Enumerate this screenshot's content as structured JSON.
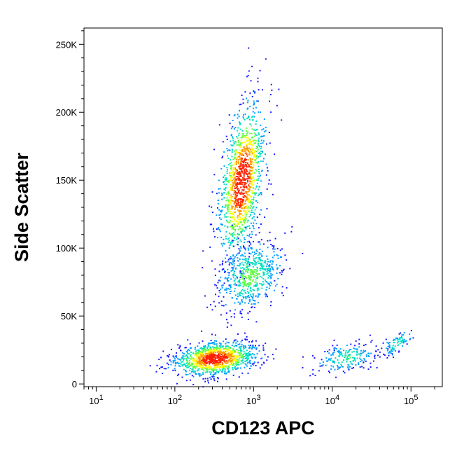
{
  "chart_data": {
    "type": "scatter",
    "subtype": "flow-cytometry-density-plot",
    "xlabel": "CD123 APC",
    "ylabel": "Side Scatter",
    "x_scale": "log",
    "y_scale": "linear",
    "xlim": [
      7,
      250000
    ],
    "ylim": [
      -2000,
      262000
    ],
    "x_ticks": [
      {
        "value": 10,
        "base": "10",
        "exp": "1"
      },
      {
        "value": 100,
        "base": "10",
        "exp": "2"
      },
      {
        "value": 1000,
        "base": "10",
        "exp": "3"
      },
      {
        "value": 10000,
        "base": "10",
        "exp": "4"
      },
      {
        "value": 100000,
        "base": "10",
        "exp": "5"
      }
    ],
    "y_ticks": [
      {
        "value": 0,
        "label": "0"
      },
      {
        "value": 50000,
        "label": "50K"
      },
      {
        "value": 100000,
        "label": "100K"
      },
      {
        "value": 150000,
        "label": "150K"
      },
      {
        "value": 200000,
        "label": "200K"
      },
      {
        "value": 250000,
        "label": "250K"
      }
    ],
    "grid": false,
    "legend": "none",
    "color_scale": [
      "#1a1aff",
      "#00a0ff",
      "#00e0c0",
      "#60ff40",
      "#ffff00",
      "#ff9900",
      "#ff2000"
    ],
    "populations": [
      {
        "center_x": 700,
        "center_y": 150000,
        "spread_x_decades": 0.13,
        "spread_y": 28000,
        "weight": 0.3,
        "peak_density": 1.0
      },
      {
        "center_x": 900,
        "center_y": 80000,
        "spread_x_decades": 0.2,
        "spread_y": 13000,
        "weight": 0.14,
        "peak_density": 0.45
      },
      {
        "center_x": 320,
        "center_y": 19000,
        "spread_x_decades": 0.25,
        "spread_y": 6000,
        "weight": 0.28,
        "peak_density": 1.0
      },
      {
        "center_x": 15000,
        "center_y": 20000,
        "spread_x_decades": 0.18,
        "spread_y": 5000,
        "weight": 0.05,
        "peak_density": 0.4
      },
      {
        "center_x": 65000,
        "center_y": 30000,
        "spread_x_decades": 0.08,
        "spread_y": 5000,
        "weight": 0.02,
        "peak_density": 0.35
      }
    ]
  }
}
